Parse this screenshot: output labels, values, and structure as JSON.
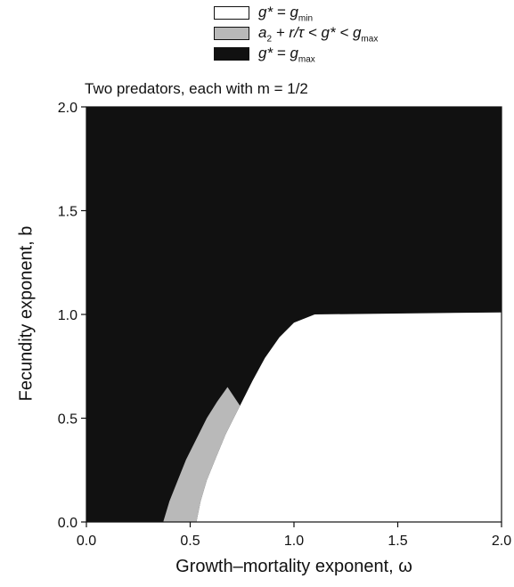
{
  "legend": {
    "items": [
      {
        "color": "#ffffff",
        "prefix": "g* = g",
        "sub": "min"
      },
      {
        "color": "#b9b9b9",
        "prefix": "a",
        "sub_a": "2",
        "middle": " + r/τ < g* < g",
        "sub": "max"
      },
      {
        "color": "#111111",
        "prefix": "g* = g",
        "sub": "max"
      }
    ]
  },
  "subtitle": "Two predators, each with m = 1/2",
  "chart_data": {
    "type": "heatmap",
    "title": "Two predators, each with m = 1/2",
    "xlabel": "Growth–mortality exponent, ω",
    "ylabel": "Fecundity exponent, b",
    "xlim": [
      0.0,
      2.0
    ],
    "ylim": [
      0.0,
      2.0
    ],
    "xticks": [
      "0.0",
      "0.5",
      "1.0",
      "1.5",
      "2.0"
    ],
    "yticks": [
      "0.0",
      "0.5",
      "1.0",
      "1.5",
      "2.0"
    ],
    "regions": [
      {
        "name": "g* = g_max",
        "color": "#111111",
        "boundary": "whole domain except the regions below"
      },
      {
        "name": "g* = g_min",
        "color": "#ffffff",
        "boundary": [
          [
            0.53,
            0.0
          ],
          [
            0.55,
            0.1
          ],
          [
            0.58,
            0.2
          ],
          [
            0.62,
            0.3
          ],
          [
            0.67,
            0.42
          ],
          [
            0.74,
            0.56
          ],
          [
            0.8,
            0.68
          ],
          [
            0.86,
            0.79
          ],
          [
            0.93,
            0.89
          ],
          [
            1.0,
            0.96
          ],
          [
            1.1,
            1.0
          ],
          [
            2.0,
            1.01
          ],
          [
            2.0,
            0.0
          ]
        ]
      },
      {
        "name": "a_2 + r/τ < g* < g_max",
        "color": "#b9b9b9",
        "boundary": [
          [
            0.37,
            0.0
          ],
          [
            0.4,
            0.1
          ],
          [
            0.44,
            0.2
          ],
          [
            0.48,
            0.3
          ],
          [
            0.53,
            0.4
          ],
          [
            0.58,
            0.5
          ],
          [
            0.63,
            0.58
          ],
          [
            0.68,
            0.65
          ],
          [
            0.74,
            0.56
          ],
          [
            0.67,
            0.42
          ],
          [
            0.62,
            0.3
          ],
          [
            0.58,
            0.2
          ],
          [
            0.55,
            0.1
          ],
          [
            0.53,
            0.0
          ]
        ]
      }
    ]
  }
}
